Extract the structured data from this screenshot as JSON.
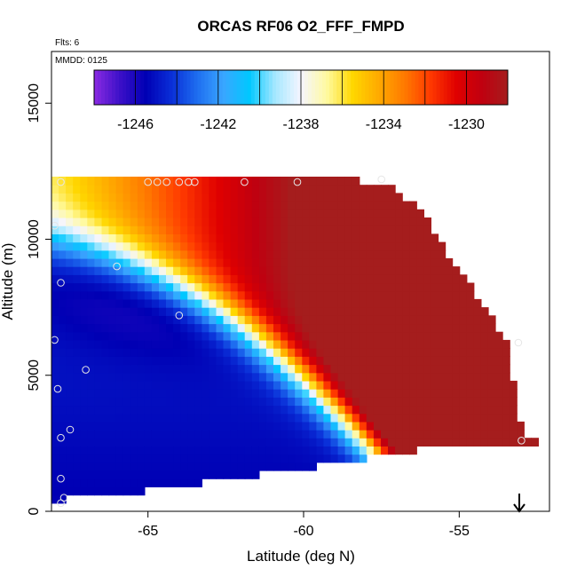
{
  "chart_data": {
    "type": "heatmap",
    "title": "ORCAS RF06 O2_FFF_FMPD",
    "note_flights": "Flts: 6",
    "note_date": "MMDD: 0125",
    "xlabel": "Latitude (deg N)",
    "ylabel": "Altitude (m)",
    "xlim": [
      -68.1,
      -52.1
    ],
    "ylim": [
      0,
      16900
    ],
    "x_ticks": [
      -65,
      -60,
      -55
    ],
    "x_tick_labels": [
      "-65",
      "-60",
      "-55"
    ],
    "y_ticks": [
      0,
      5000,
      10000,
      15000
    ],
    "y_tick_labels": [
      "0",
      "5000",
      "10000",
      "15000"
    ],
    "colorbar": {
      "range": [
        -1248,
        -1228
      ],
      "tick_values": [
        -1246,
        -1242,
        -1238,
        -1234,
        -1230
      ],
      "tick_labels": [
        "-1246",
        "-1242",
        "-1238",
        "-1234",
        "-1230"
      ],
      "colors": [
        "#8a2be2",
        "#3c10c8",
        "#0000b4",
        "#0a2fd8",
        "#1e6ef0",
        "#3aa6ff",
        "#00c8ff",
        "#a6e8ff",
        "#f5f5ff",
        "#fffaa0",
        "#ffd700",
        "#ffaa00",
        "#ff7a00",
        "#ff3a00",
        "#e00000",
        "#c00010",
        "#a51d1d"
      ],
      "placement": "top"
    },
    "field_description": "Interpolated O2 curtain: values near -1247 at mid latitudes 7–9 km, -1245 near surface, rising to about -1228 at 12 km near -58°N; a band of about -1238 to -1232 around 9–10 km.",
    "section_top_altitude": [
      [
        -67.8,
        12200
      ],
      [
        -58.7,
        12200
      ],
      [
        -57.2,
        12000
      ],
      [
        -56.2,
        11000
      ],
      [
        -55.4,
        9500
      ],
      [
        -54.6,
        8200
      ],
      [
        -53.9,
        7000
      ],
      [
        -53.5,
        6200
      ],
      [
        -53.3,
        5000
      ],
      [
        -53.1,
        3600
      ],
      [
        -52.9,
        2600
      ]
    ],
    "section_bottom_altitude": [
      [
        -68.1,
        400
      ],
      [
        -66.3,
        600
      ],
      [
        -64.6,
        800
      ],
      [
        -63.1,
        1100
      ],
      [
        -61.2,
        1400
      ],
      [
        -59.4,
        1700
      ],
      [
        -57.7,
        2000
      ],
      [
        -56.2,
        2300
      ],
      [
        -54.7,
        2500
      ],
      [
        -52.9,
        2500
      ]
    ],
    "samples": [
      [
        -67.8,
        12100
      ],
      [
        -65.0,
        12100
      ],
      [
        -64.7,
        12100
      ],
      [
        -64.4,
        12100
      ],
      [
        -64.0,
        12100
      ],
      [
        -63.7,
        12100
      ],
      [
        -63.5,
        12100
      ],
      [
        -61.9,
        12100
      ],
      [
        -60.2,
        12100
      ],
      [
        -57.5,
        12200
      ],
      [
        -68.0,
        10500
      ],
      [
        -66.0,
        9000
      ],
      [
        -67.8,
        8400
      ],
      [
        -64.0,
        7200
      ],
      [
        -68.0,
        6300
      ],
      [
        -67.0,
        5200
      ],
      [
        -67.9,
        4500
      ],
      [
        -67.8,
        2700
      ],
      [
        -67.5,
        3000
      ],
      [
        -67.8,
        1200
      ],
      [
        -67.7,
        500
      ],
      [
        -67.8,
        300
      ],
      [
        -53.1,
        6200
      ],
      [
        -53.0,
        2600
      ]
    ],
    "annotation": "down arrow at -53°N marking the ground"
  }
}
